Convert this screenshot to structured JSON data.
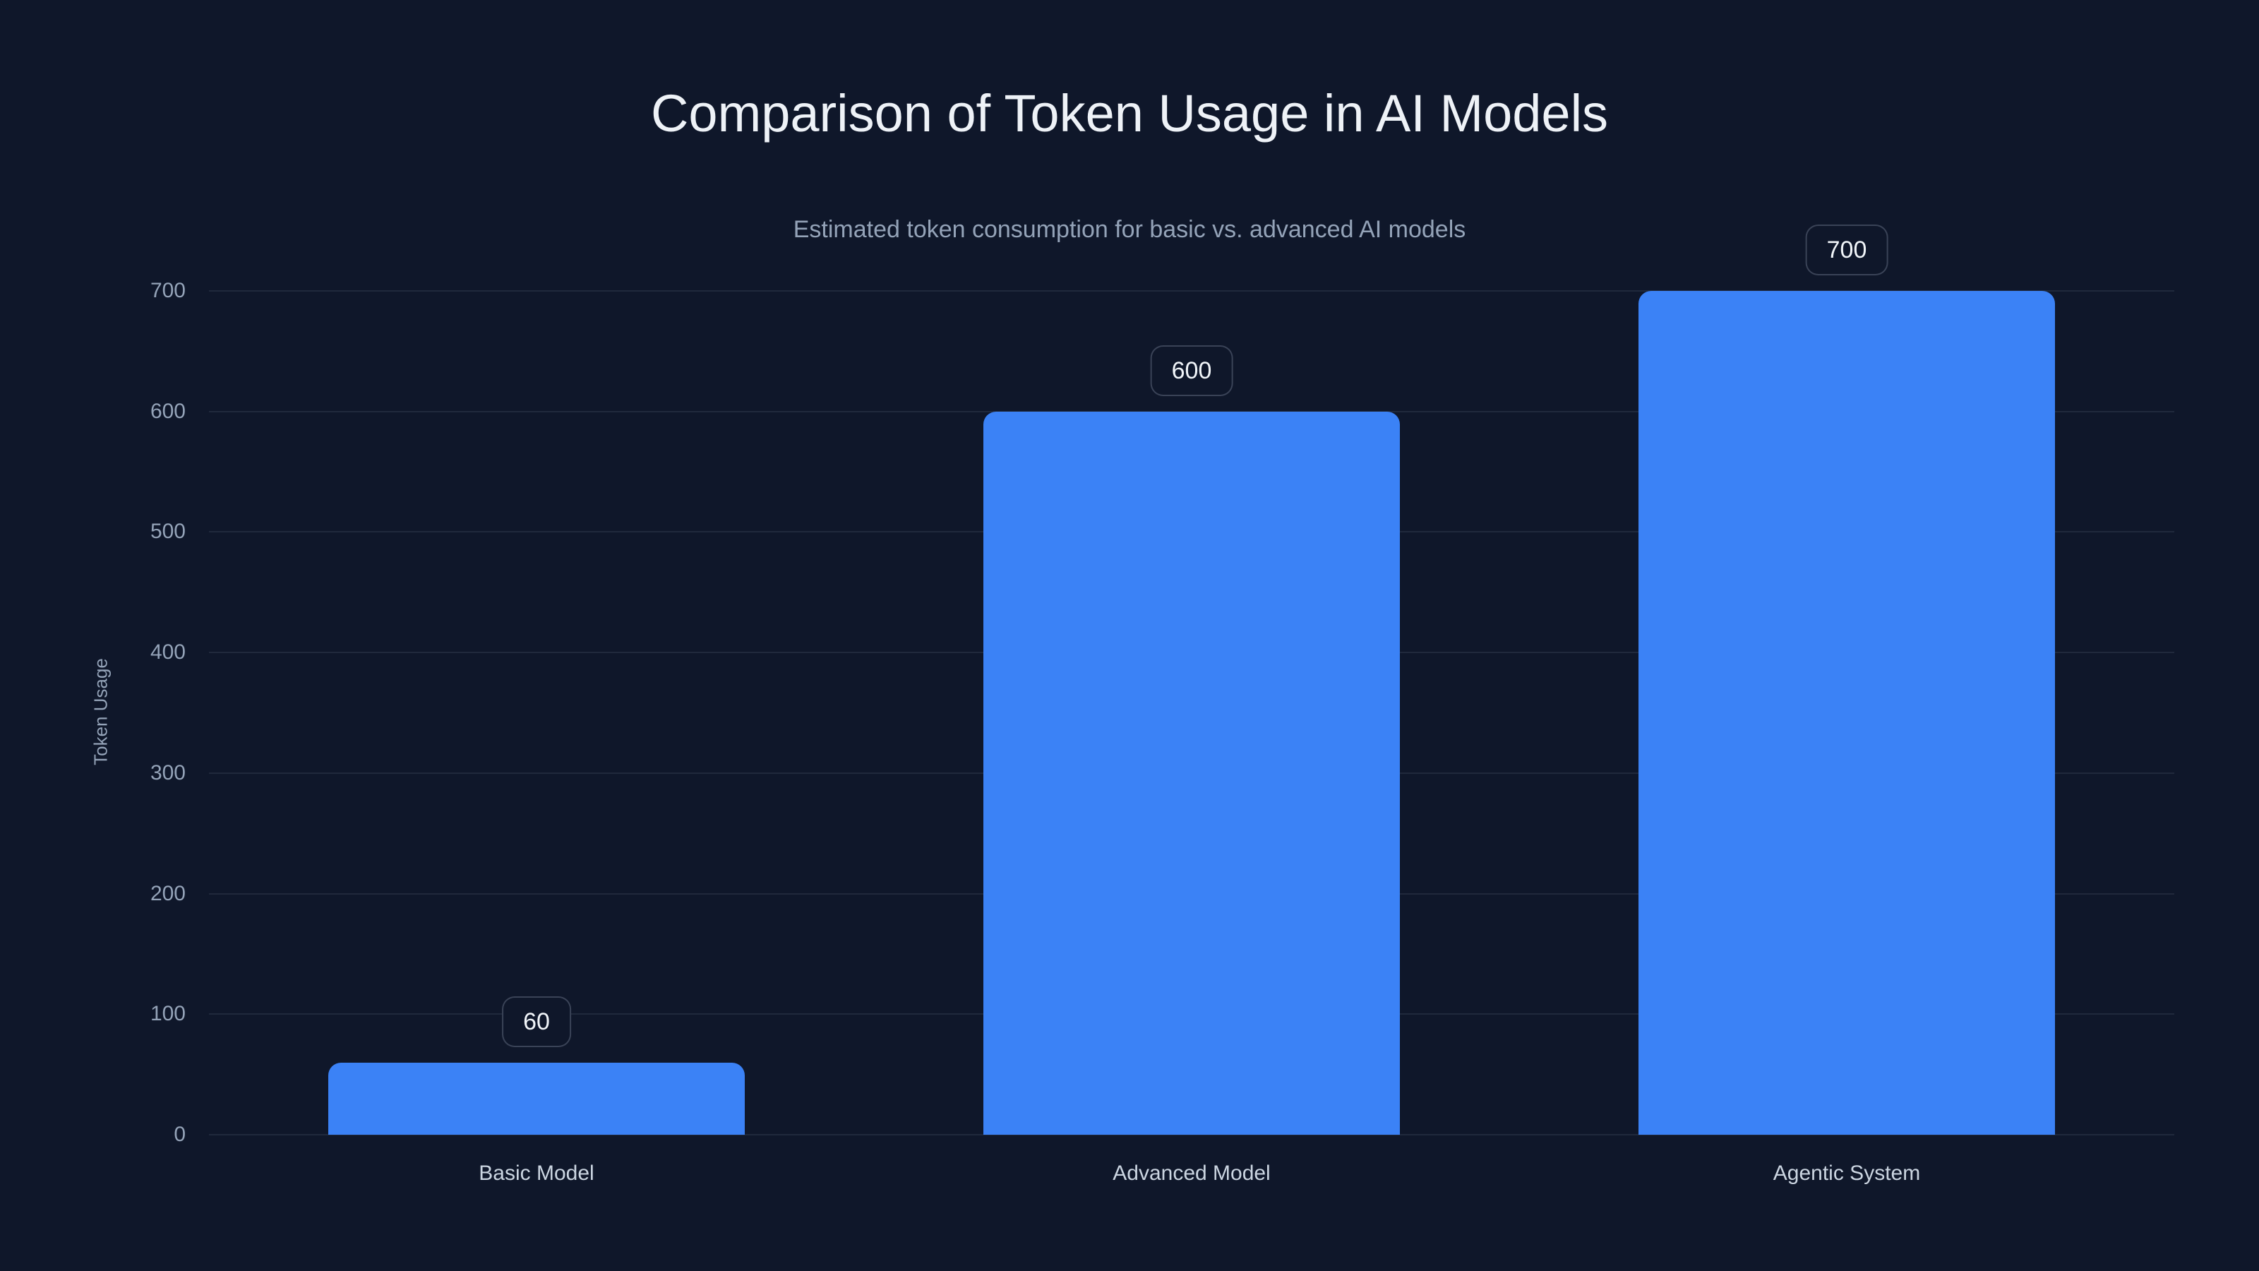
{
  "chart_data": {
    "type": "bar",
    "title": "Comparison of Token Usage in AI Models",
    "subtitle": "Estimated token consumption for basic vs. advanced AI models",
    "categories": [
      "Basic Model",
      "Advanced Model",
      "Agentic System"
    ],
    "values": [
      60,
      600,
      700
    ],
    "data_labels": [
      "60",
      "600",
      "700"
    ],
    "xlabel": "",
    "ylabel": "Token Usage",
    "ylim": [
      0,
      700
    ],
    "yticks": [
      0,
      100,
      200,
      300,
      400,
      500,
      600,
      700
    ],
    "grid": true,
    "legend": false
  },
  "colors": {
    "background": "#0f172a",
    "bar": "#3b82f6",
    "title_text": "#eef2f7",
    "subtitle_text": "#94a3b8",
    "y_tick_text": "#94a3b8",
    "x_tick_text": "#cbd5e1",
    "gridline": "rgba(148,163,184,0.13)",
    "badge_border": "rgba(148,163,184,0.32)",
    "badge_text": "#f1f5f9"
  }
}
